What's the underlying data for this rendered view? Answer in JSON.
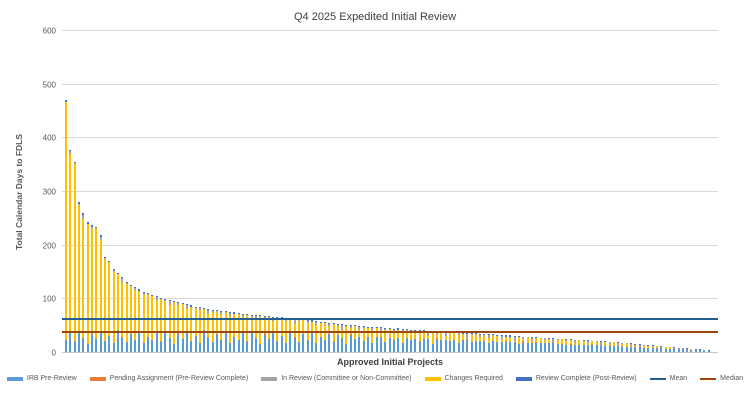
{
  "chart_data": {
    "type": "bar",
    "subtype": "stacked-descending",
    "title": "Q4 2025 Expedited Initial Review",
    "ylabel": "Total Calendar Days to FDLS",
    "xlabel": "Approved Initial Projects",
    "ylim": [
      0,
      600
    ],
    "yticks": [
      0,
      100,
      200,
      300,
      400,
      500,
      600
    ],
    "grid": true,
    "legend_position": "bottom",
    "x_category_labels_shown": false,
    "series": [
      {
        "name": "IRB Pre-Review",
        "color": "#5B9BD5"
      },
      {
        "name": "Pending Assignment (Pre-Review Complete)",
        "color": "#ED7D31"
      },
      {
        "name": "In Review (Committee or Non-Committee)",
        "color": "#A5A5A5"
      },
      {
        "name": "Changes Required",
        "color": "#FFC000"
      },
      {
        "name": "Review Complete (Post-Review)",
        "color": "#4472C4"
      }
    ],
    "reference_lines": [
      {
        "name": "Mean",
        "value": 64,
        "color": "#255E91"
      },
      {
        "name": "Median",
        "value": 40,
        "color": "#9E480E"
      }
    ],
    "bars_note": "Each bar = [total, irb_pre_review, pending_assignment, in_review, review_complete]; changes_required = remainder of total",
    "bars": [
      [
        471,
        22,
        0,
        0,
        3
      ],
      [
        378,
        35,
        0,
        5,
        3
      ],
      [
        356,
        18,
        2,
        0,
        3
      ],
      [
        280,
        40,
        0,
        2,
        3
      ],
      [
        260,
        27,
        0,
        8,
        3
      ],
      [
        243,
        15,
        0,
        0,
        3
      ],
      [
        237,
        32,
        3,
        3,
        3
      ],
      [
        234,
        24,
        0,
        0,
        3
      ],
      [
        218,
        38,
        0,
        6,
        3
      ],
      [
        177,
        20,
        1,
        1,
        2
      ],
      [
        170,
        30,
        0,
        0,
        2
      ],
      [
        156,
        16,
        0,
        4,
        2
      ],
      [
        148,
        42,
        0,
        0,
        2
      ],
      [
        140,
        26,
        2,
        7,
        2
      ],
      [
        131,
        19,
        0,
        2,
        2
      ],
      [
        126,
        34,
        0,
        0,
        2
      ],
      [
        121,
        23,
        0,
        3,
        2
      ],
      [
        117,
        37,
        1,
        0,
        2
      ],
      [
        113,
        17,
        0,
        5,
        2
      ],
      [
        110,
        29,
        0,
        0,
        2
      ],
      [
        107,
        22,
        0,
        0,
        2
      ],
      [
        104,
        35,
        0,
        5,
        2
      ],
      [
        101,
        18,
        2,
        0,
        2
      ],
      [
        99,
        40,
        0,
        2,
        2
      ],
      [
        97,
        27,
        0,
        8,
        2
      ],
      [
        95,
        15,
        0,
        0,
        2
      ],
      [
        93,
        32,
        3,
        3,
        2
      ],
      [
        91,
        24,
        0,
        0,
        2
      ],
      [
        89,
        38,
        0,
        6,
        2
      ],
      [
        87,
        20,
        1,
        1,
        2
      ],
      [
        85,
        30,
        0,
        0,
        2
      ],
      [
        84,
        16,
        0,
        4,
        2
      ],
      [
        82,
        42,
        0,
        0,
        2
      ],
      [
        81,
        26,
        2,
        7,
        2
      ],
      [
        79,
        19,
        0,
        2,
        2
      ],
      [
        78,
        34,
        0,
        0,
        2
      ],
      [
        77,
        23,
        0,
        3,
        2
      ],
      [
        76,
        37,
        1,
        0,
        2
      ],
      [
        75,
        17,
        0,
        5,
        2
      ],
      [
        74,
        29,
        0,
        0,
        2
      ],
      [
        73,
        22,
        0,
        0,
        2
      ],
      [
        72,
        35,
        0,
        5,
        2
      ],
      [
        71,
        18,
        2,
        0,
        2
      ],
      [
        70,
        40,
        0,
        2,
        2
      ],
      [
        70,
        27,
        0,
        8,
        2
      ],
      [
        69,
        15,
        0,
        0,
        2
      ],
      [
        68,
        32,
        3,
        3,
        2
      ],
      [
        67,
        24,
        0,
        0,
        2
      ],
      [
        66,
        38,
        0,
        6,
        2
      ],
      [
        65,
        20,
        1,
        1,
        2
      ],
      [
        65,
        30,
        0,
        0,
        2
      ],
      [
        64,
        16,
        0,
        4,
        2
      ],
      [
        63,
        42,
        0,
        0,
        2
      ],
      [
        62,
        26,
        2,
        7,
        2
      ],
      [
        62,
        19,
        0,
        2,
        2
      ],
      [
        61,
        34,
        0,
        0,
        2
      ],
      [
        60,
        23,
        0,
        3,
        2
      ],
      [
        59,
        37,
        1,
        0,
        2
      ],
      [
        58,
        17,
        0,
        5,
        2
      ],
      [
        57,
        29,
        0,
        0,
        2
      ],
      [
        56,
        22,
        0,
        0,
        2
      ],
      [
        55,
        35,
        0,
        5,
        2
      ],
      [
        54,
        18,
        2,
        0,
        2
      ],
      [
        53,
        40,
        0,
        2,
        2
      ],
      [
        52,
        27,
        0,
        8,
        2
      ],
      [
        51,
        15,
        0,
        0,
        2
      ],
      [
        50,
        32,
        3,
        3,
        2
      ],
      [
        50,
        24,
        0,
        0,
        2
      ],
      [
        49,
        38,
        0,
        6,
        2
      ],
      [
        48,
        20,
        1,
        1,
        2
      ],
      [
        47,
        30,
        0,
        0,
        2
      ],
      [
        47,
        16,
        0,
        4,
        2
      ],
      [
        46,
        42,
        0,
        0,
        2
      ],
      [
        46,
        26,
        2,
        7,
        2
      ],
      [
        45,
        19,
        0,
        2,
        2
      ],
      [
        45,
        34,
        0,
        0,
        2
      ],
      [
        44,
        23,
        0,
        3,
        2
      ],
      [
        44,
        37,
        1,
        0,
        2
      ],
      [
        43,
        17,
        0,
        5,
        2
      ],
      [
        43,
        29,
        0,
        0,
        2
      ],
      [
        42,
        22,
        0,
        0,
        2
      ],
      [
        42,
        35,
        0,
        5,
        2
      ],
      [
        41,
        18,
        2,
        0,
        2
      ],
      [
        41,
        40,
        0,
        2,
        2
      ],
      [
        40,
        27,
        0,
        8,
        2
      ],
      [
        40,
        15,
        0,
        0,
        2
      ],
      [
        39,
        32,
        3,
        3,
        2
      ],
      [
        39,
        24,
        0,
        0,
        2
      ],
      [
        38,
        38,
        0,
        6,
        2
      ],
      [
        38,
        20,
        1,
        1,
        2
      ],
      [
        37,
        30,
        0,
        0,
        2
      ],
      [
        37,
        16,
        0,
        4,
        2
      ],
      [
        36,
        42,
        0,
        0,
        2
      ],
      [
        36,
        26,
        2,
        7,
        2
      ],
      [
        35,
        19,
        0,
        2,
        2
      ],
      [
        35,
        34,
        0,
        0,
        2
      ],
      [
        34,
        23,
        0,
        3,
        2
      ],
      [
        34,
        37,
        1,
        0,
        2
      ],
      [
        33,
        17,
        0,
        5,
        2
      ],
      [
        33,
        29,
        0,
        0,
        2
      ],
      [
        32,
        22,
        0,
        0,
        2
      ],
      [
        32,
        35,
        0,
        5,
        2
      ],
      [
        31,
        18,
        2,
        0,
        2
      ],
      [
        31,
        40,
        0,
        2,
        2
      ],
      [
        30,
        27,
        0,
        8,
        2
      ],
      [
        30,
        15,
        0,
        0,
        2
      ],
      [
        29,
        32,
        3,
        3,
        1
      ],
      [
        29,
        24,
        0,
        0,
        1
      ],
      [
        28,
        38,
        0,
        6,
        1
      ],
      [
        28,
        20,
        1,
        1,
        1
      ],
      [
        27,
        30,
        0,
        0,
        1
      ],
      [
        27,
        16,
        0,
        4,
        1
      ],
      [
        26,
        42,
        0,
        0,
        1
      ],
      [
        26,
        26,
        2,
        7,
        1
      ],
      [
        25,
        19,
        0,
        2,
        1
      ],
      [
        25,
        34,
        0,
        0,
        1
      ],
      [
        24,
        23,
        0,
        3,
        1
      ],
      [
        24,
        37,
        1,
        0,
        1
      ],
      [
        23,
        17,
        0,
        5,
        1
      ],
      [
        23,
        29,
        0,
        0,
        1
      ],
      [
        22,
        22,
        0,
        0,
        1
      ],
      [
        22,
        35,
        0,
        5,
        1
      ],
      [
        21,
        18,
        2,
        0,
        1
      ],
      [
        21,
        40,
        0,
        2,
        1
      ],
      [
        20,
        27,
        0,
        8,
        1
      ],
      [
        20,
        15,
        0,
        0,
        1
      ],
      [
        19,
        32,
        3,
        3,
        1
      ],
      [
        19,
        24,
        0,
        0,
        1
      ],
      [
        18,
        38,
        0,
        6,
        1
      ],
      [
        17,
        20,
        1,
        1,
        1
      ],
      [
        17,
        30,
        0,
        0,
        1
      ],
      [
        16,
        16,
        0,
        4,
        1
      ],
      [
        15,
        42,
        0,
        0,
        1
      ],
      [
        15,
        26,
        2,
        7,
        1
      ],
      [
        14,
        19,
        0,
        2,
        1
      ],
      [
        13,
        34,
        0,
        0,
        1
      ],
      [
        13,
        23,
        0,
        3,
        1
      ],
      [
        12,
        37,
        1,
        0,
        1
      ],
      [
        11,
        17,
        0,
        5,
        1
      ],
      [
        10,
        29,
        0,
        0,
        1
      ],
      [
        10,
        22,
        0,
        0,
        1
      ],
      [
        9,
        35,
        0,
        5,
        1
      ],
      [
        8,
        18,
        2,
        0,
        1
      ],
      [
        8,
        40,
        0,
        2,
        1
      ],
      [
        7,
        27,
        0,
        8,
        1
      ],
      [
        6,
        15,
        0,
        0,
        1
      ],
      [
        5,
        32,
        3,
        3,
        1
      ],
      [
        5,
        24,
        0,
        0,
        1
      ],
      [
        4,
        38,
        0,
        6,
        1
      ],
      [
        3,
        29,
        0,
        0,
        1
      ]
    ]
  }
}
